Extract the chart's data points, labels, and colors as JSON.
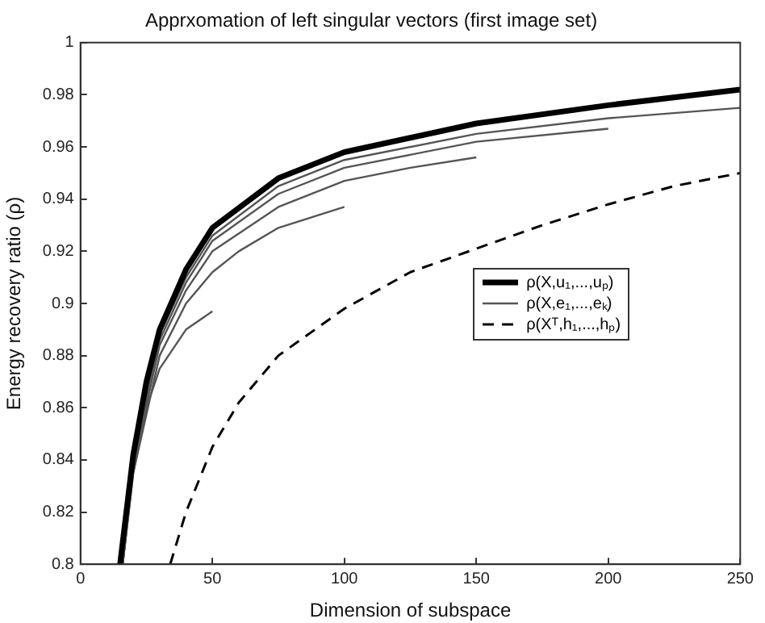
{
  "chart_data": {
    "type": "line",
    "title": "Apprxomation of left singular vectors (first image set)",
    "xlabel": "Dimension of subspace",
    "ylabel": "Energy recovery ratio (ρ)",
    "xlim": [
      0,
      250
    ],
    "xticks": [
      0,
      50,
      100,
      150,
      200,
      250
    ],
    "ylim": [
      0.8,
      1
    ],
    "yticks": [
      0.8,
      0.82,
      0.84,
      0.86,
      0.88,
      0.9,
      0.92,
      0.94,
      0.96,
      0.98,
      1
    ],
    "grid": false,
    "legend": "right",
    "marker": "none",
    "series": [
      {
        "name": "ρ(X,u₁,...,uₚ)",
        "color": "#000000",
        "line_style": "solid",
        "x": [
          15,
          20,
          25,
          30,
          40,
          50,
          75,
          100,
          150,
          200,
          250
        ],
        "values": [
          0.8,
          0.842,
          0.87,
          0.89,
          0.913,
          0.929,
          0.948,
          0.958,
          0.969,
          0.976,
          0.982
        ]
      },
      {
        "name": "ρ(X,e₁,...,eₖ)",
        "color": "#555555",
        "line_style": "solid",
        "x": [
          15.5,
          20,
          30,
          40,
          50,
          75,
          100,
          150,
          200,
          250
        ],
        "values": [
          0.8,
          0.84,
          0.888,
          0.91,
          0.926,
          0.945,
          0.955,
          0.965,
          0.971,
          0.975
        ]
      },
      {
        "color": "#555555",
        "line_style": "solid",
        "x": [
          16,
          20,
          30,
          40,
          50,
          75,
          100,
          150,
          200
        ],
        "values": [
          0.8,
          0.84,
          0.886,
          0.908,
          0.924,
          0.942,
          0.952,
          0.962,
          0.967
        ]
      },
      {
        "color": "#555555",
        "line_style": "solid",
        "x": [
          16,
          20,
          30,
          40,
          50,
          75,
          100,
          125,
          150
        ],
        "values": [
          0.8,
          0.838,
          0.884,
          0.905,
          0.92,
          0.937,
          0.947,
          0.952,
          0.956
        ]
      },
      {
        "color": "#555555",
        "line_style": "solid",
        "x": [
          16,
          20,
          30,
          40,
          50,
          60,
          75,
          100
        ],
        "values": [
          0.8,
          0.835,
          0.88,
          0.9,
          0.912,
          0.92,
          0.929,
          0.937
        ]
      },
      {
        "color": "#555555",
        "line_style": "solid",
        "x": [
          16,
          20,
          25,
          30,
          40,
          50
        ],
        "values": [
          0.8,
          0.835,
          0.86,
          0.875,
          0.89,
          0.897
        ]
      },
      {
        "name": "ρ(Xᵀ,h₁,...,hₚ)",
        "color": "#000000",
        "line_style": "dashed",
        "x": [
          34,
          40,
          50,
          60,
          75,
          100,
          125,
          150,
          175,
          200,
          225,
          250
        ],
        "values": [
          0.8,
          0.82,
          0.845,
          0.862,
          0.88,
          0.898,
          0.912,
          0.921,
          0.93,
          0.938,
          0.945,
          0.95
        ]
      }
    ]
  }
}
